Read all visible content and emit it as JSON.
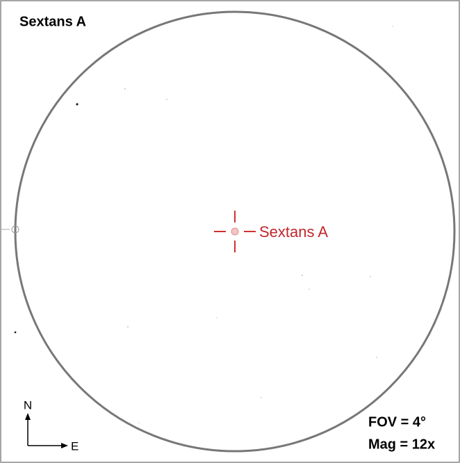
{
  "title": "Sextans A",
  "target": {
    "label": "Sextans A"
  },
  "compass": {
    "north": "N",
    "east": "E"
  },
  "info": {
    "fov": "FOV = 4°",
    "mag": "Mag = 12x"
  }
}
